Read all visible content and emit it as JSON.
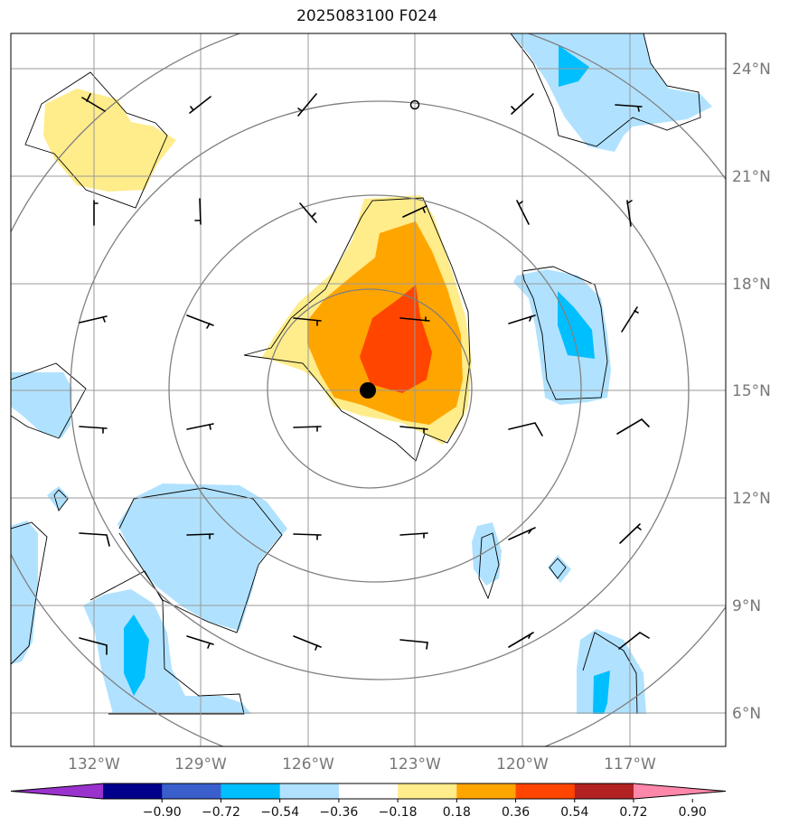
{
  "title": "2025083100 F024",
  "lat_labels": [
    "24°N",
    "21°N",
    "18°N",
    "15°N",
    "12°N",
    "9°N",
    "6°N"
  ],
  "lon_labels": [
    "132°W",
    "129°W",
    "126°W",
    "123°W",
    "120°W",
    "117°W"
  ],
  "colorbar": {
    "ticks": [
      "−0.90",
      "−0.72",
      "−0.54",
      "−0.36",
      "−0.18",
      "0.18",
      "0.36",
      "0.54",
      "0.72",
      "0.90"
    ],
    "colors": [
      "#9a32cd",
      "#00008b",
      "#3a5fcd",
      "#00bfff",
      "#b0e2ff",
      "#ffffff",
      "#ffec8b",
      "#ffa500",
      "#ff4500",
      "#b22222",
      "#ff88aa"
    ]
  },
  "colors": {
    "light_blue": "#b0e2ff",
    "deep_sky_blue": "#00bfff",
    "light_yellow": "#ffec8b",
    "orange": "#ffa500",
    "orange_red": "#ff4500",
    "grid": "#999999",
    "range_ring": "#808080"
  },
  "storm_center": {
    "lon": -124.4,
    "lat": 15.0
  }
}
